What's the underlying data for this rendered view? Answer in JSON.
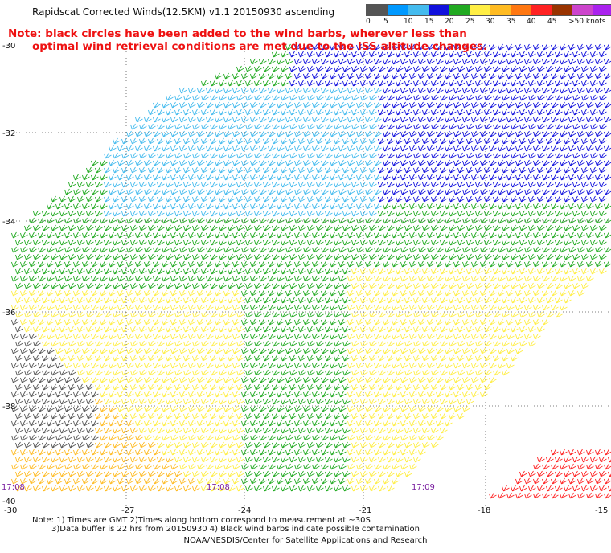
{
  "title": "Rapidscat Corrected Winds(12.5KM) v1.1 20150930 ascending",
  "note": {
    "line1": "Note: black circles have been added to the wind barbs, wherever less than",
    "line2": "optimal wind retrieval conditions are met due to the ISS altitude changes."
  },
  "legend": {
    "colors": [
      "#555555",
      "#0099ff",
      "#44bbee",
      "#1111dd",
      "#22aa22",
      "#ffee44",
      "#ffbb22",
      "#ff7711",
      "#ff2222",
      "#993300",
      "#cc44cc",
      "#aa22ee"
    ],
    "labels": [
      "0",
      "5",
      "10",
      "15",
      "20",
      "25",
      "30",
      "35",
      "40",
      "45",
      ">50 knots"
    ]
  },
  "axes": {
    "lat_labels": [
      "-30",
      "-32",
      "-34",
      "-36",
      "-38",
      "-40"
    ],
    "lon_labels": [
      "-30",
      "-27",
      "-24",
      "-21",
      "-18",
      "-15"
    ]
  },
  "times": [
    "17:08",
    "17:08",
    "17:09"
  ],
  "footer": {
    "line1": "Note: 1) Times are GMT 2)Times along bottom correspond to measurement at ~30S",
    "line2": "3)Data buffer is 22 hrs from 20150930 4) Black wind barbs indicate possible contamination",
    "credit": "NOAA/NESDIS/Center for Satellite Applications and Research"
  }
}
